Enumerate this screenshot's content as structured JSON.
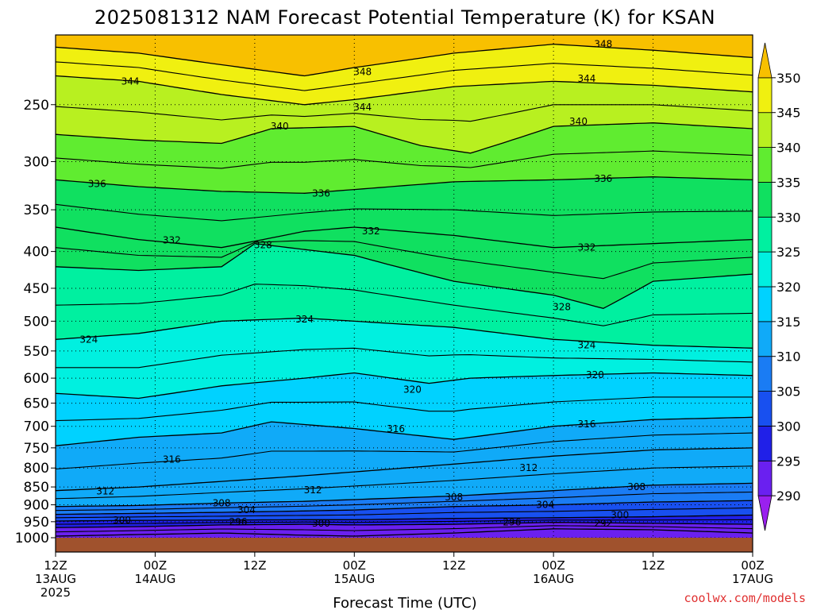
{
  "chart_data": {
    "type": "heatmap",
    "title": "2025081312 NAM Forecast Potential Temperature (K) for KSAN",
    "xlabel": "Forecast Time (UTC)",
    "ylabel": "",
    "credit": "coolwx.com/models",
    "x_ticks": [
      {
        "hour": 0,
        "lines": [
          "12Z",
          "13AUG",
          "2025"
        ]
      },
      {
        "hour": 12,
        "lines": [
          "00Z",
          "14AUG"
        ]
      },
      {
        "hour": 24,
        "lines": [
          "12Z"
        ]
      },
      {
        "hour": 36,
        "lines": [
          "00Z",
          "15AUG"
        ]
      },
      {
        "hour": 48,
        "lines": [
          "12Z"
        ]
      },
      {
        "hour": 60,
        "lines": [
          "00Z",
          "16AUG"
        ]
      },
      {
        "hour": 72,
        "lines": [
          "12Z"
        ]
      },
      {
        "hour": 84,
        "lines": [
          "00Z",
          "17AUG"
        ]
      }
    ],
    "x_range_hours": [
      0,
      84
    ],
    "y_ticks": [
      250,
      300,
      350,
      400,
      450,
      500,
      550,
      600,
      650,
      700,
      750,
      800,
      850,
      900,
      950,
      1000
    ],
    "y_range_hPa": [
      1000,
      200
    ],
    "y_scale": "log-pressure",
    "grid": "dotted",
    "colorbar": {
      "ticks": [
        290,
        295,
        300,
        305,
        310,
        315,
        320,
        325,
        330,
        335,
        340,
        345,
        350
      ],
      "range": [
        285,
        355
      ],
      "colors": [
        {
          "from": 285,
          "to": 290,
          "color": "#9a20ee"
        },
        {
          "from": 290,
          "to": 295,
          "color": "#6a20f0"
        },
        {
          "from": 295,
          "to": 300,
          "color": "#2020e8"
        },
        {
          "from": 300,
          "to": 305,
          "color": "#1850f0"
        },
        {
          "from": 305,
          "to": 310,
          "color": "#1a7cf4"
        },
        {
          "from": 310,
          "to": 315,
          "color": "#10aaf8"
        },
        {
          "from": 315,
          "to": 320,
          "color": "#00d2ff"
        },
        {
          "from": 320,
          "to": 325,
          "color": "#00f0e0"
        },
        {
          "from": 325,
          "to": 330,
          "color": "#00f0a0"
        },
        {
          "from": 330,
          "to": 335,
          "color": "#10e060"
        },
        {
          "from": 335,
          "to": 340,
          "color": "#60ec30"
        },
        {
          "from": 340,
          "to": 345,
          "color": "#b8f020"
        },
        {
          "from": 345,
          "to": 350,
          "color": "#f0f010"
        },
        {
          "from": 350,
          "to": 355,
          "color": "#f8c000"
        }
      ]
    },
    "surface_color": "#a0522d",
    "isentropes": [
      {
        "theta": 348,
        "levels": [
          {
            "h": 0,
            "p": 208
          },
          {
            "h": 10,
            "p": 212
          },
          {
            "h": 20,
            "p": 220
          },
          {
            "h": 30,
            "p": 228
          },
          {
            "h": 36,
            "p": 222
          },
          {
            "h": 48,
            "p": 212
          },
          {
            "h": 60,
            "p": 206
          },
          {
            "h": 72,
            "p": 210
          },
          {
            "h": 84,
            "p": 215
          }
        ]
      },
      {
        "theta": 344,
        "levels": [
          {
            "h": 0,
            "p": 228
          },
          {
            "h": 10,
            "p": 232
          },
          {
            "h": 20,
            "p": 242
          },
          {
            "h": 30,
            "p": 250
          },
          {
            "h": 36,
            "p": 246
          },
          {
            "h": 48,
            "p": 236
          },
          {
            "h": 60,
            "p": 232
          },
          {
            "h": 72,
            "p": 235
          },
          {
            "h": 84,
            "p": 240
          }
        ]
      },
      {
        "theta": 340,
        "levels": [
          {
            "h": 0,
            "p": 275
          },
          {
            "h": 10,
            "p": 280
          },
          {
            "h": 20,
            "p": 283
          },
          {
            "h": 26,
            "p": 270
          },
          {
            "h": 36,
            "p": 268
          },
          {
            "h": 44,
            "p": 285
          },
          {
            "h": 50,
            "p": 292
          },
          {
            "h": 60,
            "p": 268
          },
          {
            "h": 72,
            "p": 265
          },
          {
            "h": 84,
            "p": 270
          }
        ]
      },
      {
        "theta": 336,
        "levels": [
          {
            "h": 0,
            "p": 318
          },
          {
            "h": 10,
            "p": 325
          },
          {
            "h": 20,
            "p": 330
          },
          {
            "h": 30,
            "p": 332
          },
          {
            "h": 36,
            "p": 328
          },
          {
            "h": 48,
            "p": 320
          },
          {
            "h": 60,
            "p": 318
          },
          {
            "h": 72,
            "p": 315
          },
          {
            "h": 84,
            "p": 318
          }
        ]
      },
      {
        "theta": 332,
        "levels": [
          {
            "h": 0,
            "p": 370
          },
          {
            "h": 10,
            "p": 385
          },
          {
            "h": 20,
            "p": 395
          },
          {
            "h": 30,
            "p": 375
          },
          {
            "h": 36,
            "p": 370
          },
          {
            "h": 48,
            "p": 380
          },
          {
            "h": 60,
            "p": 395
          },
          {
            "h": 72,
            "p": 390
          },
          {
            "h": 84,
            "p": 385
          }
        ]
      },
      {
        "theta": 328,
        "levels": [
          {
            "h": 0,
            "p": 420
          },
          {
            "h": 10,
            "p": 425
          },
          {
            "h": 20,
            "p": 420
          },
          {
            "h": 24,
            "p": 390
          },
          {
            "h": 36,
            "p": 405
          },
          {
            "h": 48,
            "p": 440
          },
          {
            "h": 60,
            "p": 460
          },
          {
            "h": 66,
            "p": 480
          },
          {
            "h": 72,
            "p": 440
          },
          {
            "h": 84,
            "p": 430
          }
        ]
      },
      {
        "theta": 324,
        "levels": [
          {
            "h": 0,
            "p": 530
          },
          {
            "h": 10,
            "p": 520
          },
          {
            "h": 20,
            "p": 500
          },
          {
            "h": 30,
            "p": 495
          },
          {
            "h": 36,
            "p": 500
          },
          {
            "h": 48,
            "p": 510
          },
          {
            "h": 60,
            "p": 530
          },
          {
            "h": 72,
            "p": 540
          },
          {
            "h": 84,
            "p": 545
          }
        ]
      },
      {
        "theta": 320,
        "levels": [
          {
            "h": 0,
            "p": 630
          },
          {
            "h": 10,
            "p": 640
          },
          {
            "h": 20,
            "p": 615
          },
          {
            "h": 30,
            "p": 600
          },
          {
            "h": 36,
            "p": 590
          },
          {
            "h": 45,
            "p": 610
          },
          {
            "h": 50,
            "p": 600
          },
          {
            "h": 60,
            "p": 595
          },
          {
            "h": 72,
            "p": 590
          },
          {
            "h": 84,
            "p": 595
          }
        ]
      },
      {
        "theta": 316,
        "levels": [
          {
            "h": 0,
            "p": 745
          },
          {
            "h": 10,
            "p": 725
          },
          {
            "h": 20,
            "p": 715
          },
          {
            "h": 26,
            "p": 690
          },
          {
            "h": 36,
            "p": 705
          },
          {
            "h": 48,
            "p": 730
          },
          {
            "h": 60,
            "p": 700
          },
          {
            "h": 72,
            "p": 685
          },
          {
            "h": 84,
            "p": 680
          }
        ]
      },
      {
        "theta": 312,
        "levels": [
          {
            "h": 0,
            "p": 860
          },
          {
            "h": 10,
            "p": 850
          },
          {
            "h": 20,
            "p": 835
          },
          {
            "h": 30,
            "p": 820
          },
          {
            "h": 36,
            "p": 810
          },
          {
            "h": 48,
            "p": 790
          },
          {
            "h": 60,
            "p": 770
          },
          {
            "h": 72,
            "p": 755
          },
          {
            "h": 84,
            "p": 750
          }
        ]
      },
      {
        "theta": 308,
        "levels": [
          {
            "h": 0,
            "p": 905
          },
          {
            "h": 10,
            "p": 902
          },
          {
            "h": 20,
            "p": 895
          },
          {
            "h": 30,
            "p": 890
          },
          {
            "h": 36,
            "p": 885
          },
          {
            "h": 48,
            "p": 875
          },
          {
            "h": 60,
            "p": 860
          },
          {
            "h": 72,
            "p": 845
          },
          {
            "h": 84,
            "p": 840
          }
        ]
      },
      {
        "theta": 304,
        "levels": [
          {
            "h": 0,
            "p": 928
          },
          {
            "h": 10,
            "p": 925
          },
          {
            "h": 20,
            "p": 922
          },
          {
            "h": 30,
            "p": 918
          },
          {
            "h": 36,
            "p": 915
          },
          {
            "h": 48,
            "p": 905
          },
          {
            "h": 60,
            "p": 900
          },
          {
            "h": 72,
            "p": 892
          },
          {
            "h": 84,
            "p": 888
          }
        ]
      },
      {
        "theta": 300,
        "levels": [
          {
            "h": 0,
            "p": 948
          },
          {
            "h": 10,
            "p": 946
          },
          {
            "h": 20,
            "p": 945
          },
          {
            "h": 30,
            "p": 944
          },
          {
            "h": 36,
            "p": 944
          },
          {
            "h": 48,
            "p": 940
          },
          {
            "h": 60,
            "p": 938
          },
          {
            "h": 72,
            "p": 935
          },
          {
            "h": 84,
            "p": 930
          }
        ]
      },
      {
        "theta": 296,
        "levels": [
          {
            "h": 0,
            "p": 968
          },
          {
            "h": 10,
            "p": 965
          },
          {
            "h": 20,
            "p": 960
          },
          {
            "h": 30,
            "p": 958
          },
          {
            "h": 36,
            "p": 960
          },
          {
            "h": 48,
            "p": 958
          },
          {
            "h": 60,
            "p": 952
          },
          {
            "h": 72,
            "p": 955
          },
          {
            "h": 84,
            "p": 958
          }
        ]
      },
      {
        "theta": 292,
        "levels": [
          {
            "h": 0,
            "p": 995
          },
          {
            "h": 10,
            "p": 990
          },
          {
            "h": 20,
            "p": 985
          },
          {
            "h": 30,
            "p": 992
          },
          {
            "h": 36,
            "p": 995
          },
          {
            "h": 48,
            "p": 985
          },
          {
            "h": 60,
            "p": 972
          },
          {
            "h": 72,
            "p": 975
          },
          {
            "h": 84,
            "p": 985
          }
        ]
      }
    ],
    "contour_labels": [
      {
        "text": "348",
        "h": 66,
        "p": 206
      },
      {
        "text": "348",
        "h": 37,
        "p": 225
      },
      {
        "text": "344",
        "h": 9,
        "p": 232
      },
      {
        "text": "344",
        "h": 64,
        "p": 230
      },
      {
        "text": "344",
        "h": 37,
        "p": 252
      },
      {
        "text": "340",
        "h": 27,
        "p": 268
      },
      {
        "text": "340",
        "h": 63,
        "p": 264
      },
      {
        "text": "336",
        "h": 5,
        "p": 322
      },
      {
        "text": "336",
        "h": 32,
        "p": 332
      },
      {
        "text": "336",
        "h": 66,
        "p": 317
      },
      {
        "text": "332",
        "h": 14,
        "p": 386
      },
      {
        "text": "332",
        "h": 38,
        "p": 375
      },
      {
        "text": "332",
        "h": 64,
        "p": 395
      },
      {
        "text": "328",
        "h": 25,
        "p": 392
      },
      {
        "text": "328",
        "h": 61,
        "p": 478
      },
      {
        "text": "324",
        "h": 4,
        "p": 530
      },
      {
        "text": "324",
        "h": 30,
        "p": 497
      },
      {
        "text": "324",
        "h": 64,
        "p": 540
      },
      {
        "text": "320",
        "h": 43,
        "p": 622
      },
      {
        "text": "320",
        "h": 65,
        "p": 594
      },
      {
        "text": "316",
        "h": 14,
        "p": 778
      },
      {
        "text": "316",
        "h": 41,
        "p": 706
      },
      {
        "text": "316",
        "h": 64,
        "p": 695
      },
      {
        "text": "312",
        "h": 6,
        "p": 862
      },
      {
        "text": "312",
        "h": 31,
        "p": 858
      },
      {
        "text": "312",
        "h": 57,
        "p": 800
      },
      {
        "text": "308",
        "h": 20,
        "p": 895
      },
      {
        "text": "308",
        "h": 48,
        "p": 878
      },
      {
        "text": "308",
        "h": 70,
        "p": 850
      },
      {
        "text": "304",
        "h": 23,
        "p": 915
      },
      {
        "text": "304",
        "h": 59,
        "p": 900
      },
      {
        "text": "300",
        "h": 8,
        "p": 945
      },
      {
        "text": "300",
        "h": 32,
        "p": 955
      },
      {
        "text": "300",
        "h": 68,
        "p": 930
      },
      {
        "text": "296",
        "h": 22,
        "p": 950
      },
      {
        "text": "296",
        "h": 55,
        "p": 952
      },
      {
        "text": "292",
        "h": 66,
        "p": 955
      }
    ]
  }
}
